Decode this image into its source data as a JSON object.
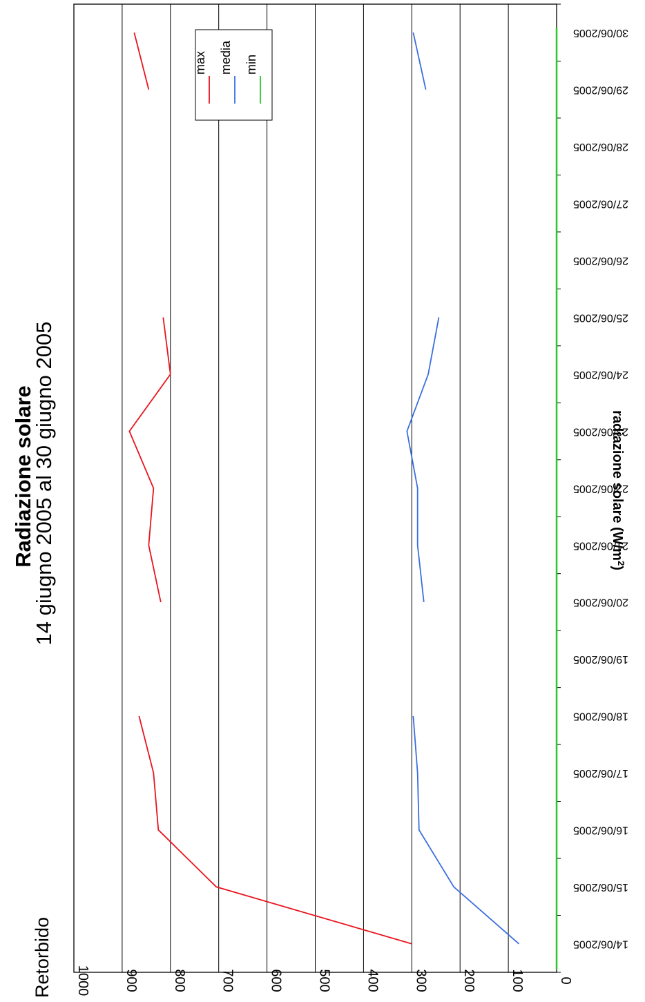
{
  "chart_data": {
    "type": "line",
    "station": "Retorbido",
    "title": "Radiazione solare",
    "subtitle": "14 giugno 2005 al 30 giugno 2005",
    "ylabel": "radiazione solare (W/m²)",
    "ylabel_main": "radiazione solare (W/m",
    "ylabel_sup": "2",
    "ylabel_close": ")",
    "ylim": [
      0,
      1000
    ],
    "yticks": [
      "0",
      "100",
      "200",
      "300",
      "400",
      "500",
      "600",
      "700",
      "800",
      "900",
      "1000"
    ],
    "grid": true,
    "legend_position": "top-right",
    "categories": [
      "14/06/2005",
      "15/06/2005",
      "16/06/2005",
      "17/06/2005",
      "18/06/2005",
      "19/06/2005",
      "20/06/2005",
      "21/06/2005",
      "22/06/2005",
      "23/06/2005",
      "24/06/2005",
      "25/06/2005",
      "26/06/2005",
      "27/06/2005",
      "28/06/2005",
      "29/06/2005",
      "30/06/2005"
    ],
    "series": [
      {
        "name": "max",
        "color": "#e8141e",
        "values": [
          300,
          705,
          825,
          835,
          865,
          null,
          820,
          845,
          835,
          885,
          800,
          815,
          null,
          null,
          null,
          845,
          875
        ]
      },
      {
        "name": "media",
        "color": "#3a6ee0",
        "values": [
          78,
          213,
          285,
          288,
          297,
          null,
          275,
          288,
          288,
          310,
          266,
          244,
          null,
          null,
          null,
          271,
          297
        ]
      },
      {
        "name": "min",
        "color": "#2ec42e",
        "values": [
          0,
          0,
          0,
          0,
          0,
          0,
          0,
          0,
          0,
          0,
          0,
          0,
          0,
          0,
          0,
          0,
          0
        ]
      }
    ]
  }
}
